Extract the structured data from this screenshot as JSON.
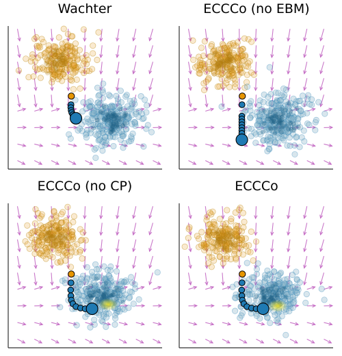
{
  "figure": {
    "titles": [
      "Wachter",
      "ECCCo (no EBM)",
      "ECCCo (no CP)",
      "ECCCo"
    ]
  },
  "colors": {
    "class_orange": "#E6A12A",
    "class_orange_edge": "#B8860B",
    "class_blue": "#1F7AB3",
    "class_blue_fill": "#8FB8CC",
    "arrow": "#C060C0",
    "path_blue": "#1F7AB3",
    "start_orange": "#E69500",
    "conformal_yellow": "#E8E030",
    "axis": "#333333"
  },
  "chart_data": [
    {
      "type": "scatter",
      "title": "Wachter",
      "xlim": [
        0,
        10
      ],
      "ylim": [
        0,
        10
      ],
      "grid": false,
      "legend": "none",
      "clusters": [
        {
          "class": "orange",
          "center": [
            3.3,
            7.6
          ],
          "spread": 0.95,
          "n": 180
        },
        {
          "class": "blue",
          "center": [
            6.7,
            3.4
          ],
          "spread": 1.05,
          "n": 260
        }
      ],
      "field_arrows": "gradient-field",
      "counterfactual_path": {
        "start": [
          4.1,
          5.1
        ],
        "points": [
          [
            4.08,
            4.5
          ],
          [
            4.07,
            4.3
          ],
          [
            4.09,
            4.1
          ],
          [
            4.13,
            3.95
          ],
          [
            4.2,
            3.8
          ],
          [
            4.3,
            3.7
          ]
        ],
        "end": [
          4.4,
          3.55
        ]
      },
      "conformal_region": false
    },
    {
      "type": "scatter",
      "title": "ECCCo (no EBM)",
      "xlim": [
        0,
        10
      ],
      "ylim": [
        0,
        10
      ],
      "grid": false,
      "legend": "none",
      "clusters": [
        {
          "class": "orange",
          "center": [
            2.9,
            7.5
          ],
          "spread": 0.9,
          "n": 180
        },
        {
          "class": "blue",
          "center": [
            6.4,
            3.4
          ],
          "spread": 1.05,
          "n": 260
        }
      ],
      "field_arrows": "gradient-field",
      "counterfactual_path": {
        "start": [
          4.1,
          5.1
        ],
        "points": [
          [
            4.08,
            4.5
          ],
          [
            4.07,
            3.7
          ],
          [
            4.07,
            3.5
          ],
          [
            4.07,
            3.3
          ],
          [
            4.07,
            3.1
          ],
          [
            4.07,
            2.9
          ],
          [
            4.07,
            2.7
          ],
          [
            4.07,
            2.5
          ]
        ],
        "end": [
          4.07,
          2.05
        ]
      },
      "conformal_region": false
    },
    {
      "type": "scatter",
      "title": "ECCCo (no CP)",
      "xlim": [
        0,
        10
      ],
      "ylim": [
        0,
        10
      ],
      "grid": false,
      "legend": "none",
      "clusters": [
        {
          "class": "orange",
          "center": [
            3.0,
            7.6
          ],
          "spread": 0.9,
          "n": 180
        },
        {
          "class": "blue",
          "center": [
            6.1,
            3.7
          ],
          "spread": 1.05,
          "n": 260
        }
      ],
      "field_arrows": "gradient-field",
      "counterfactual_path": {
        "start": [
          4.1,
          5.1
        ],
        "points": [
          [
            4.08,
            4.5
          ],
          [
            4.06,
            4.0
          ],
          [
            4.07,
            3.6
          ],
          [
            4.1,
            3.3
          ],
          [
            4.2,
            3.05
          ],
          [
            4.4,
            2.85
          ],
          [
            4.7,
            2.75
          ],
          [
            5.0,
            2.7
          ],
          [
            5.3,
            2.7
          ]
        ],
        "end": [
          5.45,
          2.7
        ]
      },
      "conformal_region": true
    },
    {
      "type": "scatter",
      "title": "ECCCo",
      "xlim": [
        0,
        10
      ],
      "ylim": [
        0,
        10
      ],
      "grid": false,
      "legend": "none",
      "clusters": [
        {
          "class": "orange",
          "center": [
            2.9,
            7.6
          ],
          "spread": 0.9,
          "n": 180
        },
        {
          "class": "blue",
          "center": [
            6.0,
            3.6
          ],
          "spread": 1.05,
          "n": 260
        }
      ],
      "field_arrows": "gradient-field",
      "counterfactual_path": {
        "start": [
          4.1,
          5.1
        ],
        "points": [
          [
            4.08,
            4.5
          ],
          [
            4.06,
            4.0
          ],
          [
            4.07,
            3.6
          ],
          [
            4.1,
            3.3
          ],
          [
            4.2,
            3.05
          ],
          [
            4.4,
            2.85
          ],
          [
            4.7,
            2.75
          ],
          [
            5.0,
            2.7
          ],
          [
            5.3,
            2.7
          ]
        ],
        "end": [
          5.45,
          2.7
        ]
      },
      "conformal_region": true
    }
  ]
}
